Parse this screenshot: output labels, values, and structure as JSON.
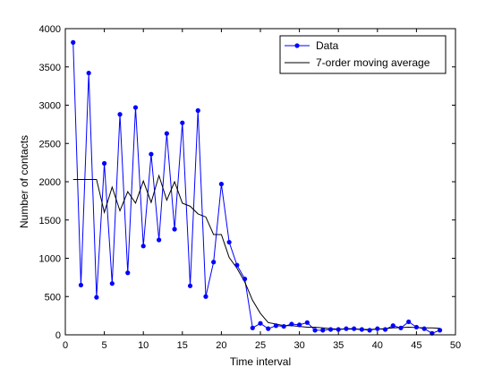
{
  "chart_data": {
    "type": "line",
    "xlabel": "Time interval",
    "ylabel": "Number of contacts",
    "xlim": [
      0,
      50
    ],
    "ylim": [
      0,
      4000
    ],
    "xticks": [
      0,
      5,
      10,
      15,
      20,
      25,
      30,
      35,
      40,
      45,
      50
    ],
    "yticks": [
      0,
      500,
      1000,
      1500,
      2000,
      2500,
      3000,
      3500,
      4000
    ],
    "grid": false,
    "legend_position": "top-right",
    "series": [
      {
        "name": "Data",
        "color": "#0000ff",
        "marker": "dot",
        "x": [
          1,
          2,
          3,
          4,
          5,
          6,
          7,
          8,
          9,
          10,
          11,
          12,
          13,
          14,
          15,
          16,
          17,
          18,
          19,
          20,
          21,
          22,
          23,
          24,
          25,
          26,
          27,
          28,
          29,
          30,
          31,
          32,
          33,
          34,
          35,
          36,
          37,
          38,
          39,
          40,
          41,
          42,
          43,
          44,
          45,
          46,
          47,
          48
        ],
        "y": [
          3820,
          650,
          3420,
          490,
          2240,
          670,
          2880,
          810,
          2970,
          1160,
          2360,
          1240,
          2630,
          1380,
          2770,
          640,
          2930,
          500,
          950,
          1970,
          1210,
          910,
          730,
          90,
          150,
          80,
          120,
          110,
          140,
          130,
          160,
          60,
          60,
          70,
          70,
          80,
          80,
          70,
          60,
          80,
          70,
          120,
          90,
          170,
          100,
          80,
          20,
          60
        ]
      },
      {
        "name": "7-order moving average",
        "color": "#000000",
        "marker": "none",
        "x": [
          1,
          2,
          3,
          4,
          5,
          6,
          7,
          8,
          9,
          10,
          11,
          12,
          13,
          14,
          15,
          16,
          17,
          18,
          19,
          20,
          21,
          22,
          23,
          24,
          25,
          26,
          27,
          28,
          29,
          30,
          31,
          32,
          33,
          34,
          35,
          36,
          37,
          38,
          39,
          40,
          41,
          42,
          43,
          44,
          45,
          46,
          47,
          48
        ],
        "y": [
          2030,
          2030,
          2030,
          2030,
          1600,
          1930,
          1620,
          1870,
          1720,
          2010,
          1730,
          2080,
          1760,
          2000,
          1720,
          1680,
          1580,
          1540,
          1310,
          1310,
          1010,
          870,
          690,
          450,
          280,
          160,
          140,
          120,
          120,
          110,
          100,
          100,
          90,
          80,
          75,
          75,
          75,
          70,
          70,
          75,
          80,
          90,
          95,
          100,
          95,
          90,
          90,
          85
        ]
      }
    ]
  }
}
